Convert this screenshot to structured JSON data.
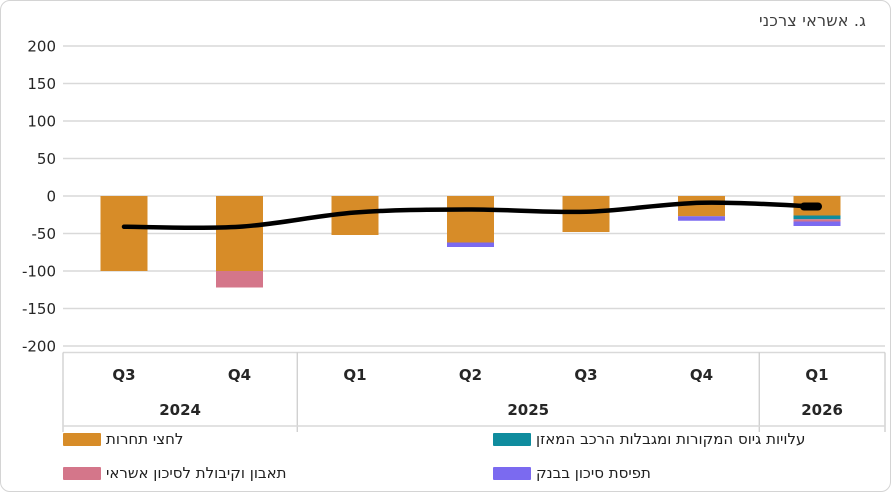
{
  "title": "ג. אשראי צרכני",
  "chart_data": {
    "type": "bar",
    "subtype": "stacked-bars-with-line",
    "title": "ג. אשראי צרכני",
    "categories": [
      "Q3",
      "Q4",
      "Q1",
      "Q2",
      "Q3",
      "Q4",
      "Q1"
    ],
    "category_groups": [
      {
        "label": "2024",
        "span": 2
      },
      {
        "label": "2025",
        "span": 4
      },
      {
        "label": "2026",
        "span": 1
      }
    ],
    "series": [
      {
        "name": "לחצי תחרות",
        "color": "#D78C28",
        "values": [
          -100,
          -100,
          -52,
          -62,
          -48,
          -27,
          -26
        ]
      },
      {
        "name": "עלויות גיוס המקורות ומגבלות הרכב המאזן",
        "color": "#0F8C9E",
        "values": [
          0,
          0,
          0,
          0,
          0,
          0,
          -5
        ]
      },
      {
        "name": "תאבון וקיבולת לסיכון אשראי",
        "color": "#D4768A",
        "values": [
          0,
          -22,
          0,
          0,
          0,
          0,
          -3
        ]
      },
      {
        "name": "תפיסת סיכון בבנק",
        "color": "#7B6AF0",
        "values": [
          0,
          0,
          0,
          -6,
          0,
          -6,
          -6
        ]
      }
    ],
    "total_line": {
      "color": "#000000",
      "values": [
        -41,
        -41,
        -22,
        -18,
        -21,
        -9,
        -14
      ]
    },
    "y_ticks": [
      200,
      150,
      100,
      50,
      0,
      -50,
      -100,
      -150,
      -200
    ],
    "ylim": [
      -200,
      200
    ],
    "grid": true,
    "gridline_color": "#D9D9D9",
    "axis_text_color": "#262626",
    "legend_position": "bottom"
  }
}
